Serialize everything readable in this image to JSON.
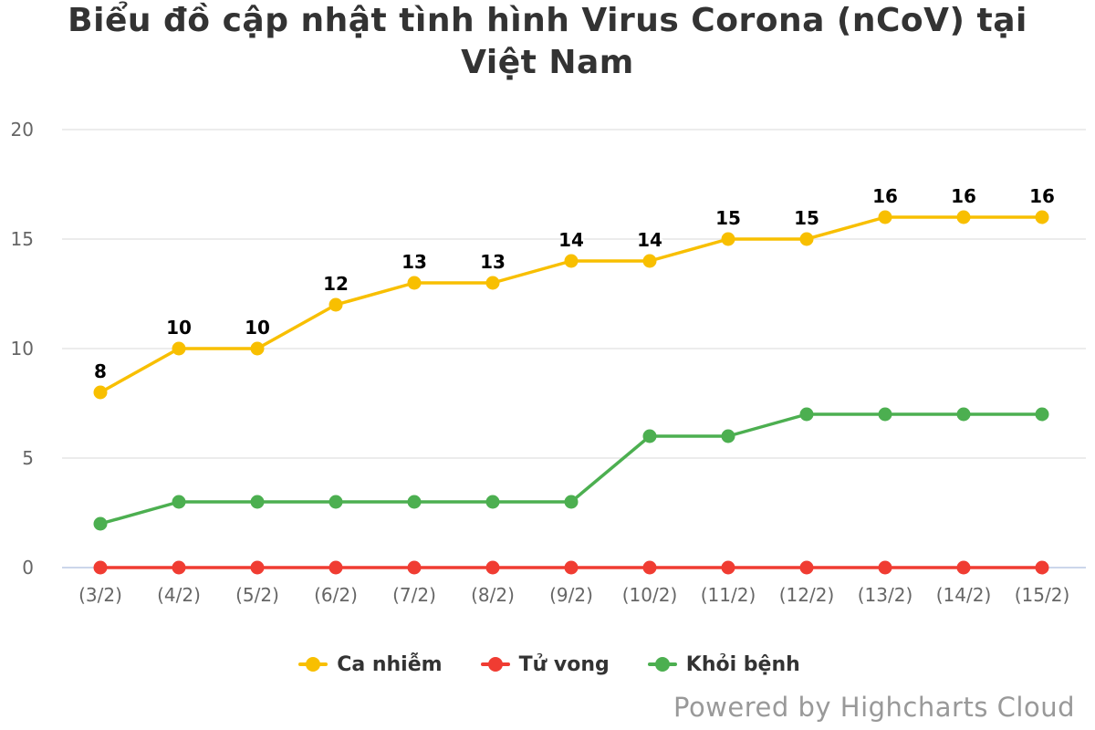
{
  "chart_data": {
    "type": "line",
    "title": "Biểu đồ cập nhật tình hình Virus Corona (nCoV) tại Việt Nam",
    "categories": [
      "(3/2)",
      "(4/2)",
      "(5/2)",
      "(6/2)",
      "(7/2)",
      "(8/2)",
      "(9/2)",
      "(10/2)",
      "(11/2)",
      "(12/2)",
      "(13/2)",
      "(14/2)",
      "(15/2)"
    ],
    "y_ticks": [
      "0",
      "5",
      "10",
      "15",
      "20"
    ],
    "ylim": [
      0,
      20
    ],
    "grid": true,
    "legend_position": "bottom-center",
    "series": [
      {
        "name": "Ca nhiễm",
        "color": "#f8bf00",
        "values": [
          8,
          10,
          10,
          12,
          13,
          13,
          14,
          14,
          15,
          15,
          16,
          16,
          16
        ],
        "data_labels": [
          "8",
          "10",
          "10",
          "12",
          "13",
          "13",
          "14",
          "14",
          "15",
          "15",
          "16",
          "16",
          "16"
        ]
      },
      {
        "name": "Tử vong",
        "color": "#f03c32",
        "values": [
          0,
          0,
          0,
          0,
          0,
          0,
          0,
          0,
          0,
          0,
          0,
          0,
          0
        ]
      },
      {
        "name": "Khỏi bệnh",
        "color": "#4caf50",
        "values": [
          2,
          3,
          3,
          3,
          3,
          3,
          3,
          6,
          6,
          7,
          7,
          7,
          7
        ]
      }
    ]
  },
  "credits": "Powered by Highcharts Cloud"
}
